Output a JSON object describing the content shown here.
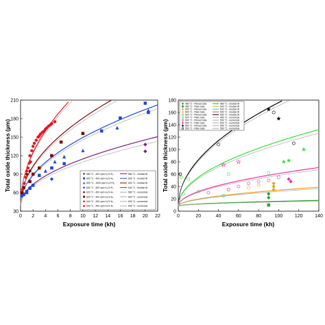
{
  "chart_data": [
    {
      "type": "scatter",
      "xlabel": "Exposure time (kh)",
      "ylabel": "Total oxide thickness (µm)",
      "xlim": [
        0,
        22
      ],
      "ylim": [
        30,
        210
      ],
      "xticks": [
        "0",
        "2",
        "4",
        "6",
        "8",
        "10",
        "12",
        "14",
        "16",
        "18",
        "20",
        "22"
      ],
      "yticks": [
        "30",
        "60",
        "90",
        "120",
        "150",
        "180",
        "210"
      ],
      "grid": false,
      "legend_position": "bottom-right",
      "colors": {
        "s580": "#7a1f7a",
        "s600": "#1f47d6",
        "s620": "#7a0a0a",
        "s640": "#e8141e",
        "grey": "#aaaaaa"
      },
      "series": [
        {
          "name": "580 °C - 400 vpm H₂O+H₂",
          "marker": "diamond",
          "color": "#7a1f7a",
          "x": [
            20,
            20
          ],
          "y": [
            138,
            127
          ]
        },
        {
          "name": "600 °C - 400 vpm H₂O+H₂",
          "marker": "square",
          "color": "#1f47d6",
          "x": [
            0.2,
            0.5,
            1.0,
            1.5,
            2.0,
            3.0,
            5.0,
            7.0,
            13.0,
            16.0,
            20.0,
            20.5
          ],
          "y": [
            55,
            57,
            62,
            67,
            72,
            88,
            100,
            107,
            160,
            181,
            205,
            190
          ]
        },
        {
          "name": "600 °C - 1000 vpm H₂O+H₂",
          "marker": "triangle",
          "color": "#1f47d6",
          "x": [
            1.0,
            2.0,
            3.0,
            4.0,
            5.5,
            7.0,
            10.0,
            15.5,
            20.5
          ],
          "y": [
            60,
            72,
            88,
            95,
            110,
            118,
            128,
            165,
            193
          ]
        },
        {
          "name": "600 °C - 400 vpm H₂O+H₂",
          "marker": "diamond",
          "color": "#1f47d6",
          "x": [
            0.5,
            1.5,
            5.0
          ],
          "y": [
            58,
            68,
            82
          ]
        },
        {
          "name": "620 °C - 400 vpm H₂O+H₂",
          "marker": "diamond",
          "color": "#7a0a0a",
          "x": [
            1.0,
            1.5
          ],
          "y": [
            90,
            95
          ]
        },
        {
          "name": "620 °C - 400 vpm H₂O+H₂",
          "marker": "square",
          "color": "#7a0a0a",
          "x": [
            0.2,
            0.5,
            1.5,
            2.0,
            3.0,
            5.0,
            6.5,
            10.0
          ],
          "y": [
            60,
            68,
            78,
            90,
            100,
            120,
            142,
            156
          ]
        },
        {
          "name": "640 °C - 400 vpm H₂O+H₂",
          "marker": "diamond",
          "color": "#e8141e",
          "x": [
            0.3,
            0.6,
            0.8,
            1.0,
            1.2,
            1.4,
            1.6
          ],
          "y": [
            65,
            75,
            85,
            95,
            100,
            108,
            110
          ]
        },
        {
          "name": "640 °C - 400 vpm H₂O+H₂",
          "marker": "circle",
          "color": "#e8141e",
          "x": [
            1.5,
            1.8,
            2.0,
            2.2,
            2.5,
            2.8,
            3.0,
            3.2,
            3.5,
            3.8,
            4.0,
            4.2,
            4.5,
            4.8,
            5.0,
            5.5
          ],
          "y": [
            120,
            128,
            135,
            140,
            145,
            150,
            152,
            155,
            158,
            160,
            163,
            165,
            168,
            170,
            172,
            175
          ]
        }
      ],
      "fit_lines": [
        {
          "name": "580 °C - median fit",
          "color": "#7a1f7a",
          "k": 23.6
        },
        {
          "name": "600 °C - median fit",
          "color": "#1f47d6",
          "k": 34.6
        },
        {
          "name": "620 °C - median fit",
          "color": "#7a0a0a",
          "k": 44.5
        },
        {
          "name": "640 °C - median fit",
          "color": "#e8141e",
          "k": 60.2
        },
        {
          "name": "580 °C - numerical",
          "color": "#aaaaaa",
          "k": 22.0
        },
        {
          "name": "600 °C - numerical",
          "color": "#aaaaaa",
          "k": 33.3
        },
        {
          "name": "620 °C - numerical",
          "color": "#aaaaaa",
          "k": 43.0
        },
        {
          "name": "640 °C - numerical",
          "color": "#aaaaaa",
          "k": 58.5
        }
      ]
    },
    {
      "type": "scatter",
      "xlabel": "Exposure time (kh)",
      "ylabel": "Total oxide thickness (µm)",
      "xlim": [
        0,
        140
      ],
      "ylim": [
        0,
        180
      ],
      "xticks": [
        "0",
        "20",
        "40",
        "60",
        "80",
        "100",
        "120",
        "140"
      ],
      "yticks": [
        "0",
        "20",
        "40",
        "60",
        "80",
        "100",
        "120",
        "140",
        "160",
        "180"
      ],
      "grid": false,
      "legend_position": "top-left",
      "colors": {
        "s480": "#2e9e2e",
        "s500": "#e8a020",
        "s520": "#33e033",
        "s540": "#f030a0",
        "s550": "#000000",
        "grey": "#aaaaaa"
      },
      "series": [
        {
          "name": "480 °C - Pinned tube",
          "marker": "diamond",
          "color": "#2e9e2e",
          "x": [
            90,
            90
          ],
          "y": [
            28,
            22
          ]
        },
        {
          "name": "480 °C - Plain tube",
          "marker": "square",
          "color": "#2e9e2e",
          "x": [
            90
          ],
          "y": [
            10
          ]
        },
        {
          "name": "500 °C - Pinned tube",
          "marker": "diamond",
          "color": "#e8a020",
          "x": [
            95,
            95,
            95
          ],
          "y": [
            45,
            40,
            35
          ]
        },
        {
          "name": "500 °C - Plain tube",
          "marker": "open-circle",
          "color": "#e8a020",
          "x": [
            50,
            70,
            80
          ],
          "y": [
            35,
            38,
            42
          ]
        },
        {
          "name": "520 °C - Pinned tube",
          "marker": "open-circle",
          "color": "#33e033",
          "x": [
            5,
            20,
            50,
            90
          ],
          "y": [
            28,
            32,
            60,
            62
          ]
        },
        {
          "name": "520 °C - Plain tube",
          "marker": "open-circle",
          "color": "#33e033",
          "x": [
            2,
            3,
            10,
            45
          ],
          "y": [
            60,
            55,
            52,
            25
          ]
        },
        {
          "name": "540 °C - Pinned tube",
          "marker": "open-circle",
          "color": "#f030a0",
          "x": [
            30,
            50,
            60,
            70,
            80,
            90,
            100
          ],
          "y": [
            30,
            35,
            40,
            45,
            48,
            50,
            55
          ]
        },
        {
          "name": "540 °C - Plain tube",
          "marker": "diamond",
          "color": "#f030a0",
          "x": [
            110,
            112
          ],
          "y": [
            52,
            48
          ]
        },
        {
          "name": "550 °C - Pinned tube",
          "marker": "star",
          "color": "#000000",
          "x": [
            90,
            100
          ],
          "y": [
            165,
            150
          ]
        },
        {
          "name": "550 °C - Plain tube",
          "marker": "open-circle",
          "color": "#000000",
          "x": [
            2,
            40,
            95,
            115
          ],
          "y": [
            60,
            108,
            160,
            110
          ]
        },
        {
          "name": "520 °C - Pinned tube",
          "marker": "star",
          "color": "#33e033",
          "x": [
            105,
            110,
            125
          ],
          "y": [
            80,
            82,
            100
          ]
        },
        {
          "name": "540 °C - Pinned tube",
          "marker": "open-star",
          "color": "#f030a0",
          "x": [
            45,
            60
          ],
          "y": [
            75,
            80
          ]
        }
      ],
      "fit_lines": [
        {
          "name": "480 °C - median fit",
          "color": "#2e9e2e",
          "k": 0.8
        },
        {
          "name": "500 °C - median fit",
          "color": "#e8a020",
          "k": 2.6
        },
        {
          "name": "520 °C - median fit",
          "color": "#33e033",
          "k": 10.5
        },
        {
          "name": "540 °C - median fit",
          "color": "#f030a0",
          "k": 5.3
        },
        {
          "name": "550 °C - median fit",
          "color": "#000000",
          "k": 16.8
        },
        {
          "name": "480 °C - numerical",
          "color": "#aaaaaa",
          "k": 0.7
        },
        {
          "name": "500 °C - numerical",
          "color": "#aaaaaa",
          "k": 2.4
        },
        {
          "name": "520 °C - numerical",
          "color": "#aaaaaa",
          "k": 10.0
        },
        {
          "name": "540 °C - numerical",
          "color": "#aaaaaa",
          "k": 5.0
        },
        {
          "name": "550 °C - numerical",
          "color": "#aaaaaa",
          "k": 16.3
        }
      ]
    }
  ]
}
